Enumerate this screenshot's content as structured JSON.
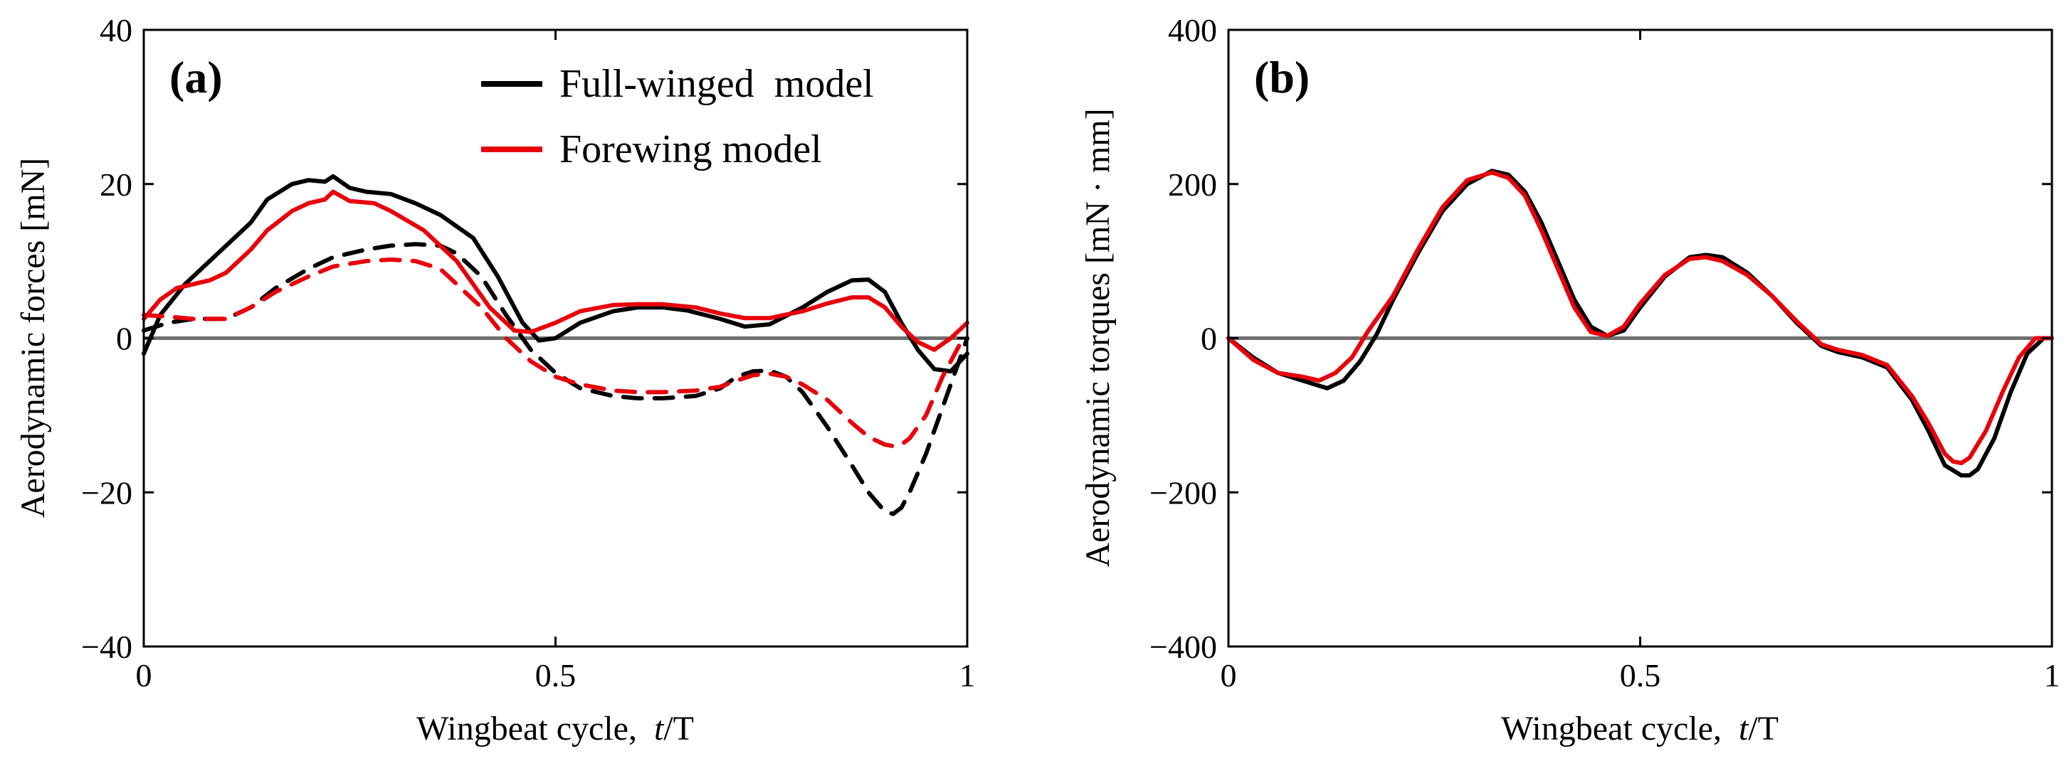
{
  "chart_data": [
    {
      "type": "line",
      "panel_label": "(a)",
      "xlabel_prefix": "Wingbeat cycle,",
      "xlabel_var": "t",
      "xlabel_suffix": "/T",
      "ylabel": "Aerodynamic forces [mN]",
      "xlim": [
        0,
        1
      ],
      "ylim": [
        -40,
        40
      ],
      "xticks": [
        "0",
        "0.5",
        "1"
      ],
      "yticks": [
        "40",
        "20",
        "0",
        "−20",
        "−40"
      ],
      "grid": false,
      "legend_position": "top-right",
      "legend": [
        {
          "label": "Full-winged  model",
          "color": "#000000"
        },
        {
          "label": "Forewing model",
          "color": "#e8000b"
        }
      ],
      "series": [
        {
          "name": "Full-winged  model",
          "color": "#000000",
          "style": "solid",
          "x": [
            0,
            0.02,
            0.05,
            0.08,
            0.1,
            0.13,
            0.15,
            0.18,
            0.2,
            0.22,
            0.23,
            0.25,
            0.27,
            0.3,
            0.33,
            0.36,
            0.4,
            0.43,
            0.46,
            0.48,
            0.5,
            0.53,
            0.57,
            0.6,
            0.63,
            0.66,
            0.7,
            0.73,
            0.76,
            0.8,
            0.83,
            0.86,
            0.88,
            0.9,
            0.92,
            0.94,
            0.96,
            0.98,
            1
          ],
          "y": [
            -2,
            3,
            7,
            10,
            12,
            15,
            18,
            20,
            20.5,
            20.3,
            21,
            19.5,
            19,
            18.7,
            17.5,
            16,
            13,
            8,
            2,
            -0.3,
            0,
            2,
            3.5,
            4,
            4,
            3.6,
            2.5,
            1.5,
            1.8,
            4,
            6,
            7.5,
            7.6,
            6,
            2,
            -1.5,
            -4,
            -4.3,
            -2
          ]
        },
        {
          "name": "",
          "color": "#000000",
          "style": "dashed",
          "x": [
            0,
            0.03,
            0.06,
            0.1,
            0.13,
            0.16,
            0.2,
            0.23,
            0.27,
            0.3,
            0.33,
            0.36,
            0.38,
            0.41,
            0.44,
            0.47,
            0.5,
            0.53,
            0.57,
            0.6,
            0.63,
            0.67,
            0.7,
            0.72,
            0.74,
            0.76,
            0.78,
            0.8,
            0.83,
            0.86,
            0.88,
            0.9,
            0.91,
            0.92,
            0.93,
            0.95,
            0.97,
            0.99,
            1
          ],
          "y": [
            1,
            2,
            2.5,
            2.5,
            4,
            6.5,
            9,
            10.5,
            11.5,
            12,
            12.2,
            12,
            11,
            8,
            3,
            -1.5,
            -4.5,
            -6.5,
            -7.5,
            -7.8,
            -7.8,
            -7.5,
            -6.5,
            -5,
            -4.3,
            -4.2,
            -5,
            -7,
            -11.5,
            -16.5,
            -20,
            -22.5,
            -22.8,
            -22,
            -20,
            -15,
            -9,
            -3,
            0
          ]
        },
        {
          "name": "Forewing model",
          "color": "#e8000b",
          "style": "solid",
          "x": [
            0,
            0.02,
            0.04,
            0.06,
            0.08,
            0.1,
            0.13,
            0.15,
            0.18,
            0.2,
            0.22,
            0.23,
            0.25,
            0.28,
            0.3,
            0.34,
            0.38,
            0.42,
            0.45,
            0.47,
            0.5,
            0.53,
            0.57,
            0.6,
            0.63,
            0.67,
            0.7,
            0.73,
            0.76,
            0.8,
            0.83,
            0.86,
            0.88,
            0.9,
            0.92,
            0.94,
            0.96,
            0.98,
            1
          ],
          "y": [
            2.5,
            5,
            6.5,
            7,
            7.5,
            8.5,
            11.5,
            14,
            16.5,
            17.5,
            18,
            19,
            17.8,
            17.5,
            16.5,
            14,
            10,
            4,
            1,
            0.8,
            2,
            3.5,
            4.3,
            4.4,
            4.4,
            4,
            3.2,
            2.6,
            2.6,
            3.5,
            4.5,
            5.3,
            5.3,
            4,
            1.5,
            -0.5,
            -1.5,
            0,
            2
          ]
        },
        {
          "name": "",
          "color": "#e8000b",
          "style": "dashed",
          "x": [
            0,
            0.03,
            0.06,
            0.1,
            0.13,
            0.16,
            0.2,
            0.23,
            0.27,
            0.3,
            0.33,
            0.36,
            0.38,
            0.41,
            0.44,
            0.47,
            0.5,
            0.53,
            0.57,
            0.6,
            0.63,
            0.67,
            0.7,
            0.72,
            0.74,
            0.76,
            0.78,
            0.8,
            0.83,
            0.86,
            0.88,
            0.9,
            0.91,
            0.92,
            0.93,
            0.95,
            0.97,
            0.99
          ],
          "y": [
            3,
            2.8,
            2.5,
            2.5,
            4,
            6,
            8,
            9.3,
            10,
            10.2,
            10,
            9,
            7,
            4,
            0,
            -3,
            -5,
            -6,
            -6.8,
            -7,
            -7,
            -6.8,
            -6.3,
            -5.5,
            -4.8,
            -4.6,
            -5,
            -6,
            -8,
            -11,
            -12.8,
            -13.8,
            -14,
            -13.8,
            -13,
            -10,
            -5,
            -1
          ]
        }
      ]
    },
    {
      "type": "line",
      "panel_label": "(b)",
      "xlabel_prefix": "Wingbeat cycle,",
      "xlabel_var": "t",
      "xlabel_suffix": "/T",
      "ylabel": "Aerodynamic torques [mN · mm]",
      "xlim": [
        0,
        1
      ],
      "ylim": [
        -400,
        400
      ],
      "xticks": [
        "0",
        "0.5",
        "1"
      ],
      "yticks": [
        "400",
        "200",
        "0",
        "−200",
        "−400"
      ],
      "grid": false,
      "series": [
        {
          "name": "",
          "color": "#000000",
          "style": "solid",
          "x": [
            0,
            0.03,
            0.06,
            0.09,
            0.12,
            0.14,
            0.16,
            0.18,
            0.2,
            0.23,
            0.26,
            0.29,
            0.32,
            0.34,
            0.36,
            0.38,
            0.4,
            0.42,
            0.44,
            0.46,
            0.48,
            0.5,
            0.53,
            0.56,
            0.58,
            0.6,
            0.63,
            0.66,
            0.69,
            0.72,
            0.74,
            0.77,
            0.8,
            0.83,
            0.85,
            0.87,
            0.89,
            0.9,
            0.91,
            0.93,
            0.95,
            0.97,
            0.99,
            1
          ],
          "y": [
            0,
            -25,
            -45,
            -55,
            -65,
            -55,
            -30,
            5,
            50,
            110,
            165,
            200,
            217,
            212,
            190,
            150,
            100,
            50,
            15,
            3,
            10,
            40,
            80,
            105,
            108,
            105,
            85,
            55,
            20,
            -10,
            -18,
            -25,
            -38,
            -80,
            -120,
            -165,
            -178,
            -178,
            -170,
            -130,
            -70,
            -20,
            0,
            0
          ]
        },
        {
          "name": "",
          "color": "#e8000b",
          "style": "solid",
          "x": [
            0,
            0.03,
            0.06,
            0.09,
            0.11,
            0.13,
            0.15,
            0.17,
            0.2,
            0.23,
            0.26,
            0.29,
            0.32,
            0.34,
            0.36,
            0.38,
            0.4,
            0.42,
            0.44,
            0.46,
            0.48,
            0.5,
            0.53,
            0.56,
            0.58,
            0.6,
            0.63,
            0.66,
            0.69,
            0.72,
            0.74,
            0.77,
            0.8,
            0.83,
            0.85,
            0.87,
            0.88,
            0.89,
            0.9,
            0.92,
            0.94,
            0.96,
            0.98,
            1
          ],
          "y": [
            0,
            -28,
            -45,
            -50,
            -55,
            -45,
            -25,
            10,
            55,
            115,
            170,
            205,
            215,
            208,
            185,
            140,
            90,
            40,
            8,
            3,
            15,
            45,
            82,
            103,
            105,
            100,
            82,
            55,
            22,
            -8,
            -15,
            -22,
            -35,
            -75,
            -110,
            -150,
            -160,
            -162,
            -155,
            -120,
            -70,
            -25,
            0,
            0
          ]
        }
      ]
    }
  ],
  "colors": {
    "black_series": "#000000",
    "red_series": "#e8000b",
    "zero_line": "#6e6e6e"
  }
}
